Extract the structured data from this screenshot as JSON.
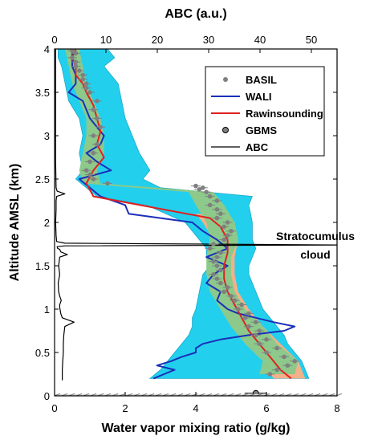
{
  "chart_data": {
    "type": "line",
    "title": "",
    "xlabel": "Water vapor mixing ratio (g/kg)",
    "x2label": "ABC (a.u.)",
    "ylabel": "Altitude AMSL (km)",
    "xlim": [
      0,
      8
    ],
    "x2lim": [
      0,
      55
    ],
    "ylim": [
      0,
      4
    ],
    "xticks": [
      "0",
      "2",
      "4",
      "6",
      "8"
    ],
    "x2ticks": [
      "0",
      "10",
      "20",
      "30",
      "40",
      "50"
    ],
    "yticks": [
      "0",
      "0.5",
      "1",
      "1.5",
      "2",
      "2.5",
      "3",
      "3.5",
      "4"
    ],
    "legend_position": "top-right",
    "legend": [
      {
        "label": "BASIL",
        "style": "marker",
        "color": "#808080"
      },
      {
        "label": "WALI",
        "style": "line",
        "color": "#1a2fb8"
      },
      {
        "label": "Rawinsounding",
        "style": "line",
        "color": "#e02020"
      },
      {
        "label": "GBMS",
        "style": "circle",
        "color": "#808080"
      },
      {
        "label": "ABC",
        "style": "line",
        "color": "#000000"
      }
    ],
    "annotation": {
      "lines": [
        "Stratocumulus",
        "cloud"
      ]
    },
    "colors": {
      "wali_band": "#22d0ee",
      "wali_band_edge": "#1aa7c8",
      "basil_band": "#8cc98a",
      "raw_band": "#f4b088",
      "basil": "#808080",
      "wali": "#1a2fb8",
      "raw": "#e02020",
      "abc": "#000000"
    },
    "series": [
      {
        "name": "WALI",
        "x": [
          2.8,
          3.1,
          3.4,
          2.9,
          3.3,
          3.6,
          4.0,
          4.0,
          4.2,
          4.7,
          5.5,
          6.5,
          6.8,
          6.2,
          5.7,
          5.2,
          4.9,
          4.6,
          4.7,
          4.3,
          4.5,
          4.9,
          4.3,
          4.9,
          4.6,
          4.2,
          3.9,
          2.1,
          2.0,
          1.3,
          1.0,
          0.7,
          1.6,
          1.2,
          0.9,
          1.3,
          1.4,
          1.0,
          0.8,
          0.4,
          0.6,
          0.6,
          0.5,
          0.5
        ],
        "y": [
          0.2,
          0.25,
          0.3,
          0.35,
          0.4,
          0.45,
          0.5,
          0.55,
          0.6,
          0.65,
          0.7,
          0.75,
          0.8,
          0.85,
          0.9,
          0.95,
          1.0,
          1.1,
          1.2,
          1.3,
          1.4,
          1.5,
          1.6,
          1.7,
          1.8,
          1.9,
          2.0,
          2.1,
          2.2,
          2.3,
          2.4,
          2.5,
          2.6,
          2.7,
          2.8,
          2.9,
          3.0,
          3.2,
          3.4,
          3.5,
          3.6,
          3.7,
          3.8,
          4.0
        ]
      },
      {
        "name": "Rawinsounding",
        "x": [
          6.7,
          6.4,
          6.1,
          5.8,
          5.5,
          5.3,
          5.1,
          4.9,
          4.8,
          4.8,
          4.9,
          4.9,
          4.7,
          4.4,
          1.1,
          0.9,
          1.1,
          1.4,
          1.2,
          1.3,
          1.2,
          1.1,
          0.9,
          0.8,
          0.6,
          0.6,
          0.5,
          0.6
        ],
        "y": [
          0.2,
          0.3,
          0.45,
          0.6,
          0.75,
          0.9,
          1.05,
          1.2,
          1.35,
          1.5,
          1.65,
          1.8,
          1.95,
          2.05,
          2.3,
          2.45,
          2.6,
          2.75,
          2.9,
          3.05,
          3.2,
          3.35,
          3.5,
          3.6,
          3.7,
          3.8,
          3.9,
          4.0
        ]
      },
      {
        "name": "BASIL",
        "x": [
          6.1,
          6.3,
          6.6,
          6.8,
          6.5,
          6.0,
          6.3,
          5.8,
          6.0,
          5.7,
          5.8,
          5.5,
          5.7,
          5.4,
          5.5,
          5.2,
          5.3,
          5.1,
          5.0,
          4.8,
          4.9,
          4.7,
          4.6,
          4.5,
          4.7,
          4.6,
          4.5,
          4.6,
          4.7,
          4.4,
          4.5,
          4.8,
          4.9,
          5.0,
          4.8,
          4.9,
          4.6,
          4.7,
          4.6,
          4.4,
          4.6,
          4.4,
          4.3,
          4.1,
          4.2,
          4.0,
          1.5,
          1.1,
          1.0,
          0.9,
          1.0,
          1.1,
          1.2,
          1.1,
          1.3,
          1.2,
          1.1,
          1.2,
          1.0,
          0.9,
          0.9,
          0.8,
          0.8,
          0.7,
          0.6,
          0.6,
          0.5,
          0.6,
          0.5,
          0.5
        ],
        "y": [
          0.25,
          0.3,
          0.35,
          0.4,
          0.45,
          0.5,
          0.55,
          0.6,
          0.65,
          0.7,
          0.75,
          0.8,
          0.85,
          0.9,
          0.95,
          1.0,
          1.05,
          1.1,
          1.15,
          1.2,
          1.25,
          1.3,
          1.35,
          1.4,
          1.45,
          1.5,
          1.55,
          1.6,
          1.65,
          1.7,
          1.75,
          1.8,
          1.85,
          1.9,
          1.95,
          2.0,
          2.05,
          2.1,
          2.15,
          2.2,
          2.25,
          2.3,
          2.35,
          2.38,
          2.4,
          2.42,
          2.45,
          2.5,
          2.55,
          2.6,
          2.7,
          2.8,
          2.9,
          3.0,
          3.1,
          3.2,
          3.3,
          3.4,
          3.5,
          3.55,
          3.6,
          3.65,
          3.7,
          3.75,
          3.8,
          3.85,
          3.9,
          3.95,
          3.98,
          4.0
        ]
      },
      {
        "name": "GBMS",
        "x": [
          5.7
        ],
        "y": [
          0.03
        ]
      },
      {
        "name": "ABC",
        "axis": "top",
        "x": [
          1.5,
          1.5,
          1.6,
          1.7,
          1.7,
          1.8,
          2.0,
          3.8,
          1.5,
          1.2,
          1.0,
          1.0,
          1.3,
          1.0,
          0.8,
          0.7,
          1.0,
          0.8,
          1.0,
          2.5,
          1.2,
          1.0,
          0.6,
          0.5,
          2.0,
          55.0,
          2.0,
          0.4,
          0.3,
          0.2,
          0.3,
          0.3,
          0.4,
          2.0,
          0.5,
          0.3,
          0.2,
          0.2
        ],
        "y": [
          0.18,
          0.3,
          0.4,
          0.5,
          0.6,
          0.7,
          0.8,
          0.85,
          0.9,
          0.95,
          1.02,
          1.05,
          1.1,
          1.15,
          1.2,
          1.3,
          1.4,
          1.5,
          1.6,
          1.63,
          1.66,
          1.69,
          1.7,
          1.72,
          1.73,
          1.74,
          1.76,
          1.78,
          1.85,
          2.0,
          2.15,
          2.25,
          2.3,
          2.33,
          2.36,
          2.4,
          2.7,
          4.0
        ]
      }
    ],
    "bands": [
      {
        "name": "WALI uncertainty",
        "y": [
          0.2,
          0.3,
          0.4,
          0.5,
          0.6,
          0.7,
          0.8,
          0.9,
          1.0,
          1.2,
          1.4,
          1.5,
          1.6,
          1.7,
          1.8,
          2.0,
          2.2,
          2.3,
          2.4,
          2.5,
          2.6,
          2.8,
          3.0,
          3.2,
          3.4,
          3.6,
          3.8,
          3.9,
          4.0
        ],
        "lo": [
          2.7,
          3.0,
          3.2,
          3.4,
          3.6,
          3.8,
          3.9,
          3.9,
          4.0,
          4.1,
          4.2,
          4.4,
          4.3,
          4.3,
          4.1,
          3.7,
          2.6,
          1.2,
          0.9,
          0.6,
          0.8,
          0.7,
          0.8,
          0.7,
          0.4,
          0.3,
          0.2,
          0.1,
          0.1
        ],
        "hi": [
          7.2,
          7.1,
          7.0,
          6.8,
          6.6,
          6.5,
          6.3,
          6.1,
          5.9,
          5.7,
          5.5,
          5.5,
          5.6,
          5.7,
          5.6,
          5.6,
          5.5,
          5.6,
          3.0,
          2.5,
          2.7,
          2.4,
          2.2,
          2.0,
          1.9,
          1.8,
          1.4,
          1.7,
          1.5
        ]
      },
      {
        "name": "Rawinsounding uncertainty",
        "y": [
          0.2,
          0.4,
          0.6,
          0.8,
          1.0,
          1.2,
          1.4,
          1.6,
          1.8,
          2.0,
          2.1
        ],
        "lo": [
          6.2,
          5.9,
          5.4,
          5.0,
          4.7,
          4.5,
          4.5,
          4.5,
          4.5,
          4.2,
          4.0
        ],
        "hi": [
          7.1,
          6.9,
          6.4,
          5.9,
          5.5,
          5.2,
          5.1,
          5.1,
          5.2,
          5.1,
          4.8
        ]
      },
      {
        "name": "BASIL uncertainty",
        "y": [
          0.25,
          0.4,
          0.6,
          0.8,
          1.0,
          1.2,
          1.4,
          1.6,
          1.8,
          2.0,
          2.2,
          2.35,
          2.45,
          2.6,
          2.8,
          3.0,
          3.2,
          3.4,
          3.6,
          3.8,
          4.0
        ],
        "lo": [
          5.8,
          5.9,
          5.4,
          5.0,
          4.7,
          4.4,
          4.3,
          4.3,
          4.4,
          4.3,
          4.0,
          3.8,
          0.8,
          0.7,
          0.8,
          0.9,
          0.9,
          0.7,
          0.5,
          0.4,
          0.3
        ],
        "hi": [
          6.8,
          6.9,
          6.3,
          5.9,
          5.4,
          5.1,
          5.0,
          5.0,
          5.2,
          5.1,
          4.8,
          4.5,
          1.3,
          1.2,
          1.4,
          1.4,
          1.3,
          1.1,
          0.9,
          0.8,
          0.7
        ]
      }
    ]
  }
}
